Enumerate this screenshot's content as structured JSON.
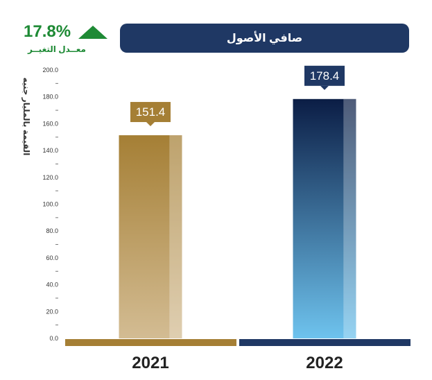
{
  "header": {
    "change_value": "17.8%",
    "change_label": "معــدل التغيــر",
    "change_color": "#1e8a35",
    "title": "صافي الأصول",
    "title_bg": "#1f3864"
  },
  "chart_data": {
    "type": "bar",
    "title": "صافي الأصول",
    "ylabel": "القيمة بالمليار جنيه",
    "categories": [
      "2021",
      "2022"
    ],
    "values": [
      151.4,
      178.4
    ],
    "value_labels": [
      "151.4",
      "178.4"
    ],
    "ylim": [
      0,
      200
    ],
    "yticks": [
      "0.0",
      "20.0",
      "40.0",
      "60.0",
      "80.0",
      "100.0",
      "120.0",
      "140.0",
      "160.0",
      "180.0",
      "200.0"
    ],
    "colors": {
      "2021": {
        "top": "#a57f35",
        "bottom": "#d3bc93",
        "label_bg": "#a57f35",
        "base": "#a57f35"
      },
      "2022": {
        "top": "#0b1d45",
        "bottom": "#6ec3ee",
        "label_bg": "#1f3864",
        "base": "#1f3864"
      }
    },
    "grid": false,
    "legend": "none"
  }
}
